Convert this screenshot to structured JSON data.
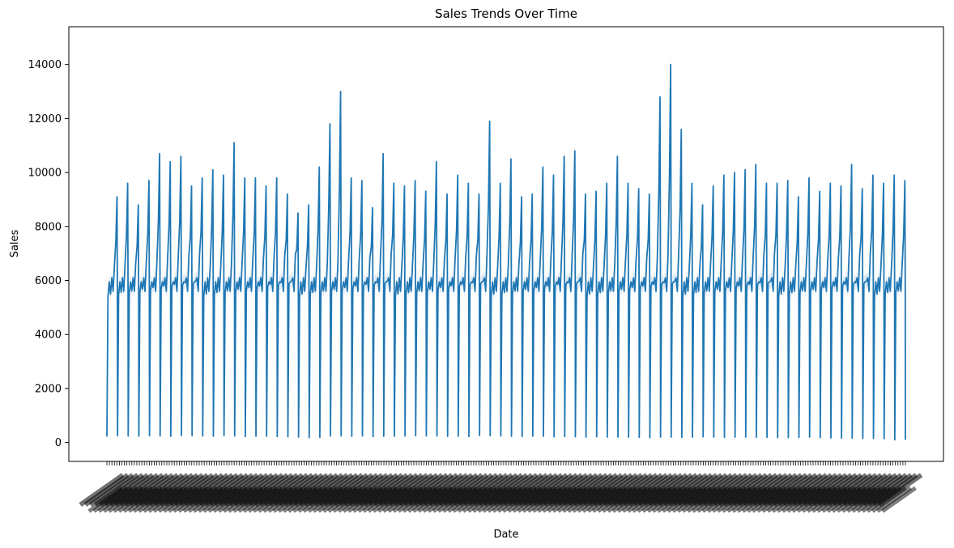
{
  "chart_data": {
    "type": "line",
    "title": "Sales Trends Over Time",
    "xlabel": "Date",
    "ylabel": "Sales",
    "ylim": [
      -700,
      15400
    ],
    "yticks": [
      0,
      2000,
      4000,
      6000,
      8000,
      10000,
      12000,
      14000
    ],
    "x_tick_labels_legible": false,
    "grid": false,
    "legend": "none",
    "series_color": "#1f77b4",
    "band_color": "#c6dbef",
    "cycle_peaks": [
      9100,
      9600,
      8800,
      9700,
      10700,
      10400,
      10600,
      9500,
      9800,
      10100,
      9900,
      11100,
      9800,
      9800,
      9500,
      9800,
      9200,
      8500,
      8800,
      10200,
      11800,
      13000,
      9800,
      9700,
      8700,
      10700,
      9600,
      9500,
      9700,
      9300,
      10400,
      9200,
      9900,
      9600,
      9200,
      11900,
      9600,
      10500,
      9100,
      9200,
      10200,
      9900,
      10600,
      10800,
      9200,
      9300,
      9600,
      10600,
      9600,
      9400,
      9200,
      12800,
      14000,
      11600,
      9600,
      8800,
      9500,
      9900,
      10000,
      10100,
      10300,
      9600,
      9600,
      9700,
      9100,
      9800,
      9300,
      9600,
      9500,
      10300,
      9400,
      9900,
      9600,
      9900,
      9700
    ],
    "cycle_lows": [
      220,
      250,
      240,
      230,
      250,
      240,
      230,
      260,
      250,
      240,
      230,
      250,
      240,
      220,
      230,
      230,
      220,
      210,
      200,
      180,
      190,
      240,
      240,
      230,
      240,
      220,
      230,
      230,
      240,
      250,
      240,
      240,
      230,
      230,
      220,
      260,
      250,
      240,
      230,
      220,
      230,
      230,
      210,
      220,
      210,
      200,
      210,
      200,
      200,
      200,
      190,
      180,
      200,
      200,
      190,
      200,
      210,
      200,
      190,
      200,
      200,
      190,
      190,
      180,
      180,
      190,
      200,
      180,
      170,
      160,
      160,
      150,
      150,
      140,
      100
    ],
    "baseline_level": 5800
  }
}
